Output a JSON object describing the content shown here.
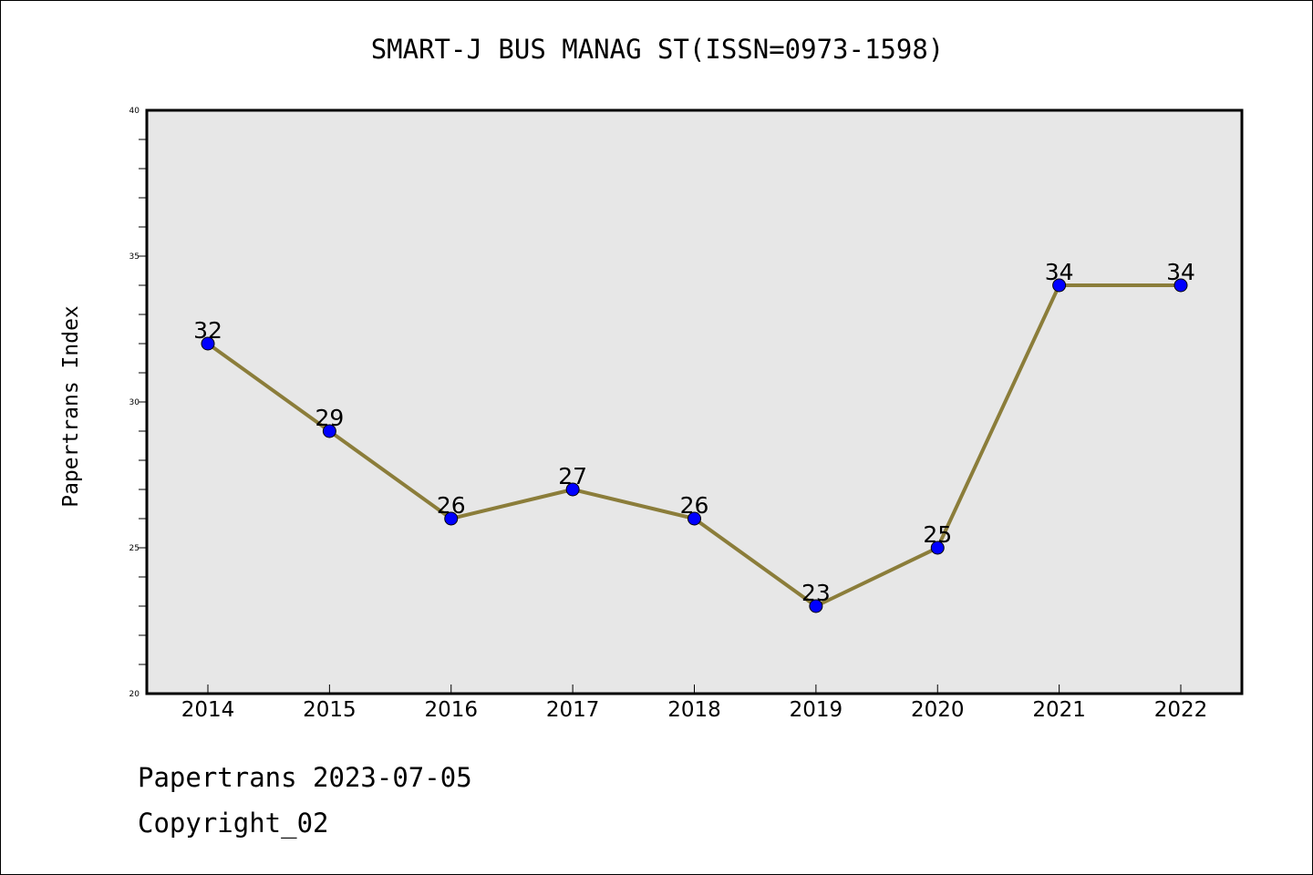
{
  "chart_data": {
    "type": "line",
    "title": "SMART-J BUS MANAG ST(ISSN=0973-1598)",
    "ylabel": "Papertrans Index",
    "xlabel": "",
    "categories": [
      "2014",
      "2015",
      "2016",
      "2017",
      "2018",
      "2019",
      "2020",
      "2021",
      "2022"
    ],
    "series": [
      {
        "values": [
          32,
          29,
          26,
          27,
          26,
          23,
          25,
          34,
          34
        ],
        "line_color": "#8B7D3A",
        "marker_color": "#0000FF"
      }
    ],
    "data_labels": [
      "32",
      "29",
      "26",
      "27",
      "26",
      "23",
      "25",
      "34",
      "34"
    ],
    "ylim": [
      20,
      40
    ],
    "yticks": [
      "20",
      "25",
      "30",
      "35",
      "40"
    ],
    "grid": false,
    "plot_background": "#E7E7E7"
  },
  "footer": {
    "date_line": "Papertrans 2023-07-05",
    "copyright": "Copyright_02"
  }
}
